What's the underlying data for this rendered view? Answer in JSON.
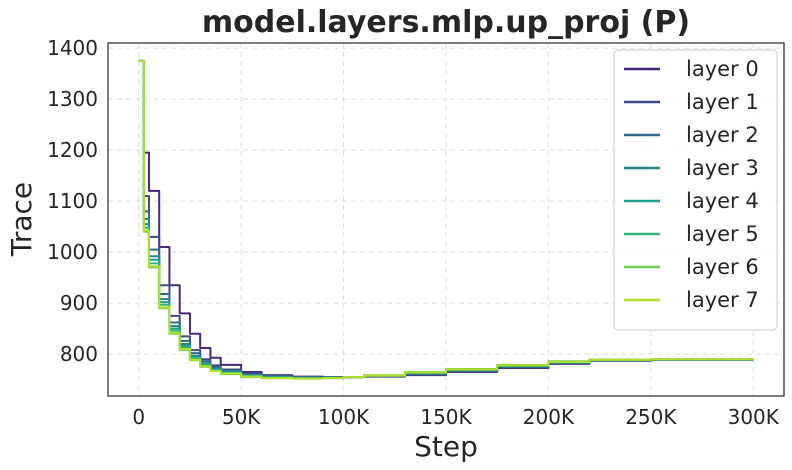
{
  "chart_data": {
    "type": "line",
    "title": "model.layers.mlp.up_proj (P)",
    "xlabel": "Step",
    "ylabel": "Trace",
    "xlim": [
      -15000,
      315000
    ],
    "ylim": [
      718,
      1410
    ],
    "xticks": [
      0,
      50000,
      100000,
      150000,
      200000,
      250000,
      300000
    ],
    "xtick_labels": [
      "0",
      "50K",
      "100K",
      "150K",
      "200K",
      "250K",
      "300K"
    ],
    "yticks": [
      800,
      900,
      1000,
      1100,
      1200,
      1300,
      1400
    ],
    "ytick_labels": [
      "800",
      "900",
      "1000",
      "1100",
      "1200",
      "1300",
      "1400"
    ],
    "grid": true,
    "legend_position": "top-right",
    "series": [
      {
        "name": "layer 0",
        "color": "#482878",
        "x": [
          0,
          2500,
          5000,
          10000,
          15000,
          20000,
          25000,
          30000,
          35000,
          40000,
          50000,
          60000,
          75000,
          90000,
          100000,
          110000,
          130000,
          150000,
          175000,
          200000,
          220000,
          250000,
          300000
        ],
        "y": [
          1375,
          1195,
          1120,
          1010,
          935,
          880,
          840,
          812,
          793,
          779,
          765,
          759,
          756,
          755,
          755,
          756,
          759,
          765,
          773,
          781,
          787,
          789,
          789
        ]
      },
      {
        "name": "layer 1",
        "color": "#3e4a89",
        "x": [
          0,
          2500,
          5000,
          10000,
          15000,
          20000,
          25000,
          30000,
          35000,
          40000,
          50000,
          60000,
          75000,
          90000,
          100000,
          110000,
          130000,
          150000,
          175000,
          200000,
          220000,
          250000,
          300000
        ],
        "y": [
          1375,
          1110,
          1030,
          935,
          875,
          835,
          808,
          790,
          778,
          770,
          762,
          758,
          755,
          755,
          755,
          757,
          760,
          766,
          774,
          782,
          787,
          789,
          789
        ]
      },
      {
        "name": "layer 2",
        "color": "#31688e",
        "x": [
          0,
          2500,
          5000,
          10000,
          15000,
          20000,
          25000,
          30000,
          35000,
          40000,
          50000,
          60000,
          75000,
          90000,
          100000,
          110000,
          130000,
          150000,
          175000,
          200000,
          220000,
          250000,
          300000
        ],
        "y": [
          1375,
          1080,
          1005,
          918,
          862,
          826,
          802,
          786,
          775,
          768,
          760,
          756,
          754,
          754,
          755,
          757,
          761,
          767,
          775,
          783,
          788,
          789,
          789
        ]
      },
      {
        "name": "layer 3",
        "color": "#26828e",
        "x": [
          0,
          2500,
          5000,
          10000,
          15000,
          20000,
          25000,
          30000,
          35000,
          40000,
          50000,
          60000,
          75000,
          90000,
          100000,
          110000,
          130000,
          150000,
          175000,
          200000,
          220000,
          250000,
          300000
        ],
        "y": [
          1375,
          1065,
          992,
          908,
          855,
          820,
          797,
          782,
          772,
          766,
          759,
          756,
          754,
          754,
          755,
          758,
          762,
          768,
          776,
          783,
          788,
          789,
          789
        ]
      },
      {
        "name": "layer 4",
        "color": "#1f9e89",
        "x": [
          0,
          2500,
          5000,
          10000,
          15000,
          20000,
          25000,
          30000,
          35000,
          40000,
          50000,
          60000,
          75000,
          90000,
          100000,
          110000,
          130000,
          150000,
          175000,
          200000,
          220000,
          250000,
          300000
        ],
        "y": [
          1375,
          1055,
          985,
          902,
          850,
          816,
          794,
          780,
          770,
          764,
          758,
          755,
          753,
          754,
          755,
          758,
          763,
          769,
          777,
          784,
          788,
          789,
          789
        ]
      },
      {
        "name": "layer 5",
        "color": "#35b779",
        "x": [
          0,
          2500,
          5000,
          10000,
          15000,
          20000,
          25000,
          30000,
          35000,
          40000,
          50000,
          60000,
          75000,
          90000,
          100000,
          110000,
          130000,
          150000,
          175000,
          200000,
          220000,
          250000,
          300000
        ],
        "y": [
          1375,
          1048,
          978,
          897,
          846,
          813,
          792,
          778,
          769,
          763,
          757,
          754,
          753,
          754,
          755,
          758,
          764,
          770,
          778,
          785,
          789,
          790,
          790
        ]
      },
      {
        "name": "layer 6",
        "color": "#6ece58",
        "x": [
          0,
          2500,
          5000,
          10000,
          15000,
          20000,
          25000,
          30000,
          35000,
          40000,
          50000,
          60000,
          75000,
          90000,
          100000,
          110000,
          130000,
          150000,
          175000,
          200000,
          220000,
          250000,
          300000
        ],
        "y": [
          1375,
          1040,
          970,
          890,
          840,
          808,
          788,
          775,
          767,
          761,
          755,
          753,
          752,
          753,
          755,
          759,
          765,
          771,
          779,
          786,
          789,
          790,
          790
        ]
      },
      {
        "name": "layer 7",
        "color": "#b5de2b",
        "x": [
          0,
          2500,
          5000,
          10000,
          15000,
          20000,
          25000,
          30000,
          35000,
          40000,
          50000,
          60000,
          75000,
          90000,
          100000,
          110000,
          130000,
          150000,
          175000,
          200000,
          220000,
          250000,
          300000
        ],
        "y": [
          1375,
          1042,
          972,
          892,
          842,
          810,
          789,
          776,
          767,
          762,
          756,
          753,
          752,
          753,
          755,
          758,
          764,
          770,
          778,
          785,
          789,
          790,
          790
        ]
      }
    ]
  }
}
